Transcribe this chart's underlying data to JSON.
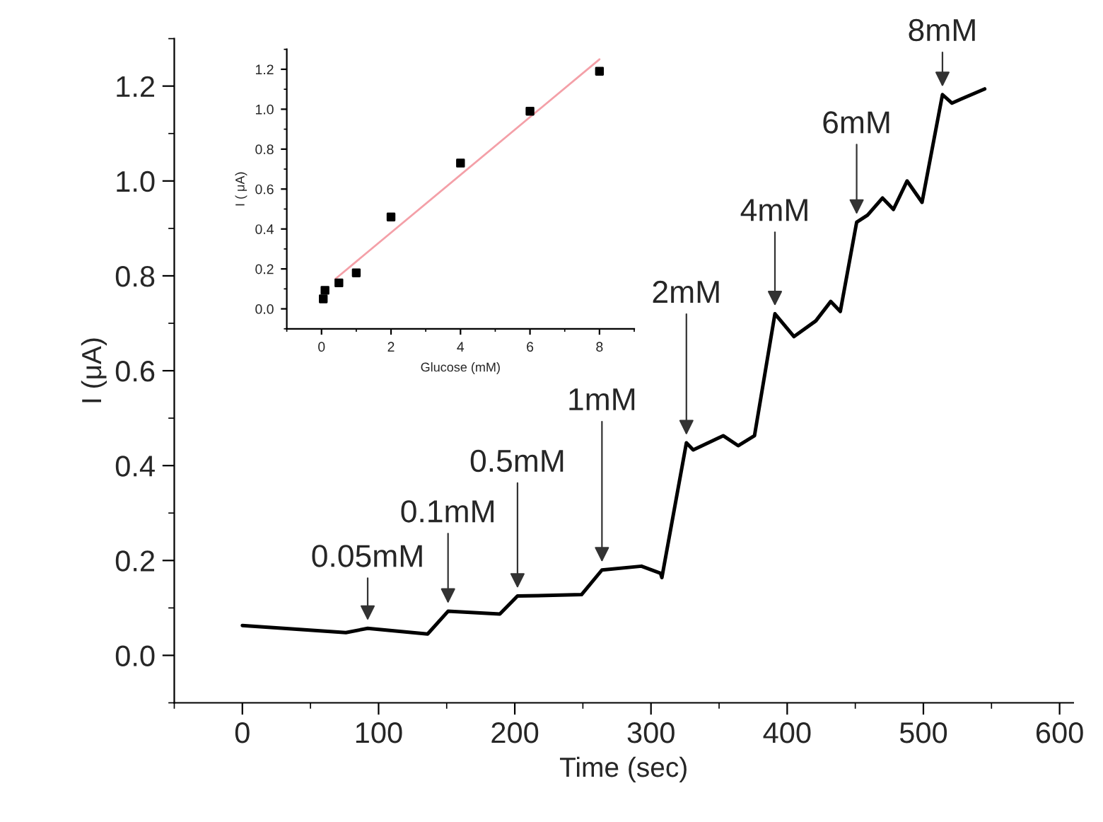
{
  "chart_data": [
    {
      "type": "line",
      "xlabel": "Time (sec)",
      "ylabel": "I (μA)",
      "series": [
        {
          "color": "#000000",
          "x": [
            0,
            76,
            92,
            136,
            151,
            189,
            202,
            249,
            264,
            293,
            307,
            308,
            326,
            331,
            353,
            364,
            376,
            391,
            405,
            421,
            432,
            439,
            451,
            459,
            470,
            478,
            488,
            499,
            514,
            521,
            528,
            545
          ],
          "values": [
            0.063,
            0.048,
            0.057,
            0.045,
            0.093,
            0.087,
            0.125,
            0.128,
            0.18,
            0.188,
            0.173,
            0.164,
            0.448,
            0.433,
            0.463,
            0.442,
            0.463,
            0.72,
            0.672,
            0.705,
            0.746,
            0.725,
            0.913,
            0.928,
            0.964,
            0.94,
            1.0,
            0.955,
            1.182,
            1.164,
            1.173,
            1.194
          ]
        }
      ],
      "xlim": [
        -50,
        610
      ],
      "ylim": [
        -0.1,
        1.3
      ],
      "xticks": [
        0,
        100,
        200,
        300,
        400,
        500,
        600
      ],
      "yticks": [
        {
          "value": 0,
          "label": "0.0"
        },
        {
          "value": 0.2,
          "label": "0.2"
        },
        {
          "value": 0.4,
          "label": "0.4"
        },
        {
          "value": 0.6,
          "label": "0.6"
        },
        {
          "value": 0.8,
          "label": "0.8"
        },
        {
          "value": 1.0,
          "label": "1.0"
        },
        {
          "value": 1.2,
          "label": "1.2"
        }
      ],
      "grid": false,
      "legend": false,
      "annotations": [
        {
          "text": "0.05mM",
          "x": 92,
          "y": 0.057
        },
        {
          "text": "0.1mM",
          "x": 151,
          "y": 0.093
        },
        {
          "text": "0.5mM",
          "x": 202,
          "y": 0.125
        },
        {
          "text": "1mM",
          "x": 264,
          "y": 0.18
        },
        {
          "text": "2mM",
          "x": 326,
          "y": 0.448
        },
        {
          "text": "4mM",
          "x": 391,
          "y": 0.72
        },
        {
          "text": "6mM",
          "x": 451,
          "y": 0.913
        },
        {
          "text": "8mM",
          "x": 514,
          "y": 1.182
        }
      ]
    },
    {
      "type": "scatter",
      "xlabel": "Glucose (mM)",
      "ylabel": "I ( μA)",
      "series": [
        {
          "type": "scatter",
          "marker": "square",
          "color": "#000000",
          "x": [
            0.05,
            0.1,
            0.5,
            1,
            2,
            4,
            6,
            8
          ],
          "values": [
            0.05,
            0.093,
            0.13,
            0.18,
            0.46,
            0.73,
            0.99,
            1.19
          ]
        },
        {
          "type": "line",
          "color": "#f4a0a8",
          "x": [
            0.4,
            8
          ],
          "values": [
            0.15,
            1.25
          ]
        }
      ],
      "xlim": [
        -1,
        9
      ],
      "ylim": [
        -0.1,
        1.3
      ],
      "xticks": [
        0,
        2,
        4,
        6,
        8
      ],
      "yticks": [
        {
          "value": 0,
          "label": "0.0"
        },
        {
          "value": 0.2,
          "label": "0.2"
        },
        {
          "value": 0.4,
          "label": "0.4"
        },
        {
          "value": 0.6,
          "label": "0.6"
        },
        {
          "value": 0.8,
          "label": "0.8"
        },
        {
          "value": 1.0,
          "label": "1.0"
        },
        {
          "value": 1.2,
          "label": "1.2"
        }
      ],
      "grid": false,
      "legend": false
    }
  ]
}
